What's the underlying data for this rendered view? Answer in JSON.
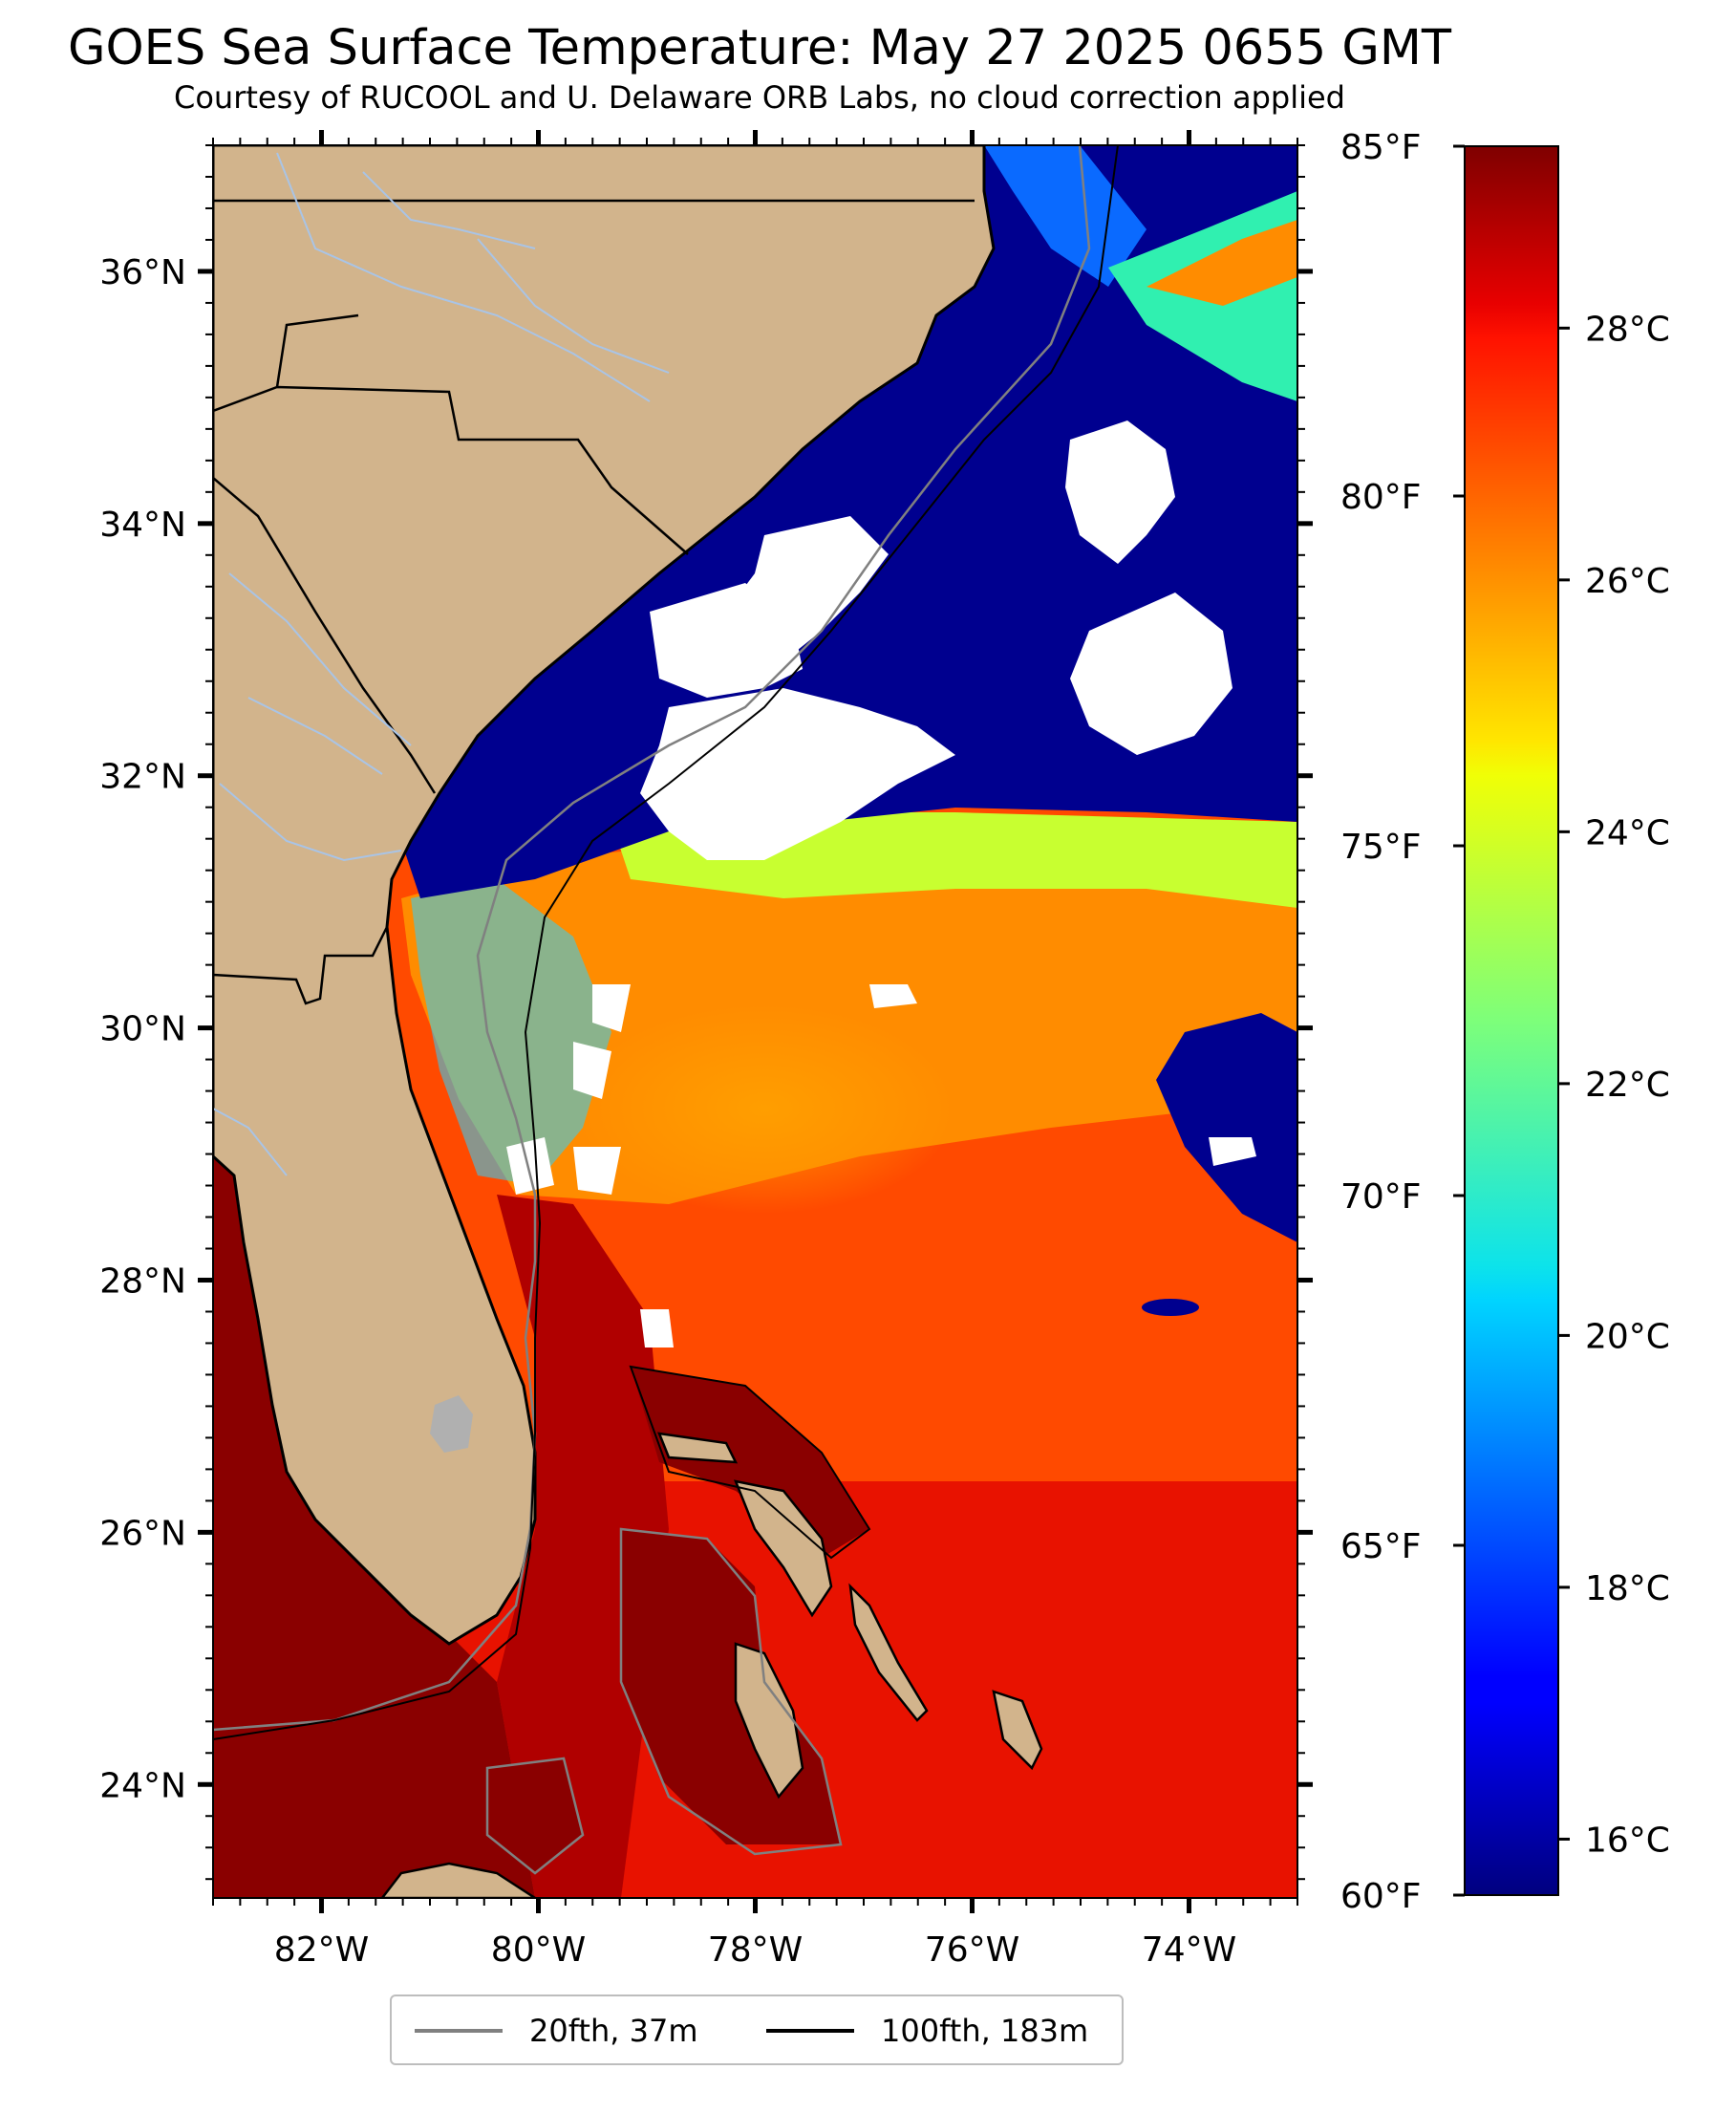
{
  "title": "GOES Sea Surface Temperature: May 27 2025 0655 GMT",
  "subtitle": "Courtesy of RUCOOL and U. Delaware ORB Labs, no cloud correction applied",
  "map": {
    "lon_ticks": [
      {
        "value": -82,
        "label": "82°W"
      },
      {
        "value": -80,
        "label": "80°W"
      },
      {
        "value": -78,
        "label": "78°W"
      },
      {
        "value": -76,
        "label": "76°W"
      },
      {
        "value": -74,
        "label": "74°W"
      }
    ],
    "lat_ticks": [
      {
        "value": 36,
        "label": "36°N"
      },
      {
        "value": 34,
        "label": "34°N"
      },
      {
        "value": 32,
        "label": "32°N"
      },
      {
        "value": 30,
        "label": "30°N"
      },
      {
        "value": 28,
        "label": "28°N"
      },
      {
        "value": 26,
        "label": "26°N"
      },
      {
        "value": 24,
        "label": "24°N"
      }
    ],
    "lon_range": [
      -83,
      -73
    ],
    "lat_range": [
      23.1,
      37.0
    ],
    "land_color": "#d2b48c",
    "cloud_color": "#ffffff",
    "river_color": "#a9c4e6",
    "lake_color": "#b0b0b0"
  },
  "colorbar": {
    "colormap": "jet",
    "range_f": [
      60,
      85
    ],
    "fahrenheit_ticks": [
      {
        "value": 85,
        "label": "85°F"
      },
      {
        "value": 80,
        "label": "80°F"
      },
      {
        "value": 75,
        "label": "75°F"
      },
      {
        "value": 70,
        "label": "70°F"
      },
      {
        "value": 65,
        "label": "65°F"
      },
      {
        "value": 60,
        "label": "60°F"
      }
    ],
    "celsius_ticks": [
      {
        "value": 28,
        "label": "28°C"
      },
      {
        "value": 26,
        "label": "26°C"
      },
      {
        "value": 24,
        "label": "24°C"
      },
      {
        "value": 22,
        "label": "22°C"
      },
      {
        "value": 20,
        "label": "20°C"
      },
      {
        "value": 18,
        "label": "18°C"
      },
      {
        "value": 16,
        "label": "16°C"
      }
    ]
  },
  "legend": {
    "items": [
      {
        "label": "20fth, 37m",
        "color": "#808080"
      },
      {
        "label": "100fth, 183m",
        "color": "#000000"
      }
    ]
  }
}
